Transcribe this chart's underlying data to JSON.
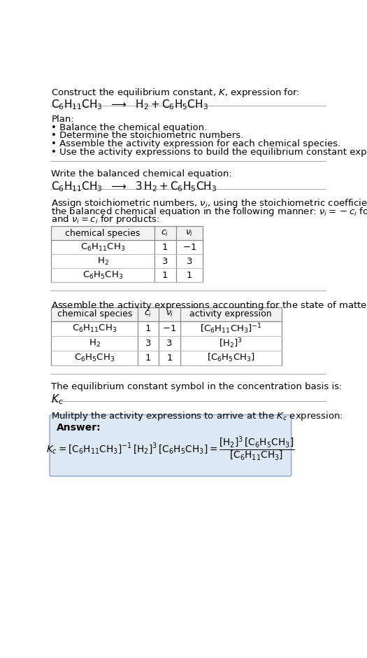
{
  "title_line1": "Construct the equilibrium constant, $K$, expression for:",
  "title_line2": "$\\mathrm{C_6H_{11}CH_3}$  $\\longrightarrow$  $\\mathrm{H_2 + C_6H_5CH_3}$",
  "plan_header": "Plan:",
  "plan_items": [
    "• Balance the chemical equation.",
    "• Determine the stoichiometric numbers.",
    "• Assemble the activity expression for each chemical species.",
    "• Use the activity expressions to build the equilibrium constant expression."
  ],
  "balanced_header": "Write the balanced chemical equation:",
  "balanced_eq": "$\\mathrm{C_6H_{11}CH_3}$  $\\longrightarrow$  $\\mathrm{3\\,H_2 + C_6H_5CH_3}$",
  "stoich_lines": [
    "Assign stoichiometric numbers, $\\nu_i$, using the stoichiometric coefficients, $c_i$, from",
    "the balanced chemical equation in the following manner: $\\nu_i = -c_i$ for reactants",
    "and $\\nu_i = c_i$ for products:"
  ],
  "table1_cols": [
    "chemical species",
    "$c_i$",
    "$\\nu_i$"
  ],
  "table1_rows": [
    [
      "$\\mathrm{C_6H_{11}CH_3}$",
      "1",
      "$-1$"
    ],
    [
      "$\\mathrm{H_2}$",
      "3",
      "3"
    ],
    [
      "$\\mathrm{C_6H_5CH_3}$",
      "1",
      "1"
    ]
  ],
  "activity_header": "Assemble the activity expressions accounting for the state of matter and $\\nu_i$:",
  "table2_cols": [
    "chemical species",
    "$c_i$",
    "$\\nu_i$",
    "activity expression"
  ],
  "table2_rows": [
    [
      "$\\mathrm{C_6H_{11}CH_3}$",
      "1",
      "$-1$",
      "$[\\mathrm{C_6H_{11}CH_3}]^{-1}$"
    ],
    [
      "$\\mathrm{H_2}$",
      "3",
      "3",
      "$[\\mathrm{H_2}]^3$"
    ],
    [
      "$\\mathrm{C_6H_5CH_3}$",
      "1",
      "1",
      "$[\\mathrm{C_6H_5CH_3}]$"
    ]
  ],
  "kc_header": "The equilibrium constant symbol in the concentration basis is:",
  "kc_symbol": "$K_c$",
  "multiply_header": "Mulitply the activity expressions to arrive at the $K_c$ expression:",
  "answer_label": "Answer:",
  "bg_color": "#ffffff",
  "text_color": "#000000",
  "box_bg": "#dce9f5",
  "separator_color": "#aaaaaa",
  "table_line_color": "#888888",
  "table_inner_color": "#bbbbbb"
}
